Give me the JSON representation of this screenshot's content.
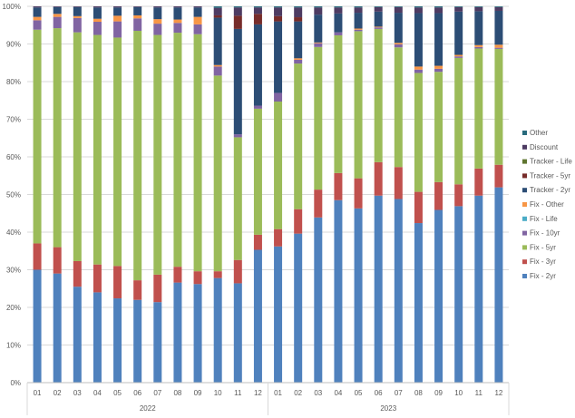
{
  "chart_data": {
    "type": "bar",
    "stacked": "percent",
    "title": "",
    "xlabel": "",
    "ylabel": "",
    "ylim": [
      0,
      100
    ],
    "y_ticks": [
      "0%",
      "10%",
      "20%",
      "30%",
      "40%",
      "50%",
      "60%",
      "70%",
      "80%",
      "90%",
      "100%"
    ],
    "grid": true,
    "legend_position": "right",
    "groups": [
      {
        "label": "2022",
        "categories": [
          "01",
          "02",
          "03",
          "04",
          "05",
          "06",
          "07",
          "08",
          "09",
          "10",
          "11",
          "12"
        ]
      },
      {
        "label": "2023",
        "categories": [
          "01",
          "02",
          "03",
          "04",
          "05",
          "06",
          "07",
          "08",
          "09",
          "10",
          "11",
          "12"
        ]
      }
    ],
    "series": [
      {
        "name": "Fix - 2yr",
        "color": "#4f81bd",
        "values": [
          30,
          29,
          25.5,
          24,
          22.4,
          22,
          21.4,
          26.6,
          26.2,
          27.8,
          26.4,
          35.3,
          36.2,
          39.6,
          43.9,
          48.5,
          46.3,
          49.7,
          48.8,
          42.4,
          45.9,
          46.9,
          49.7,
          51.9
        ]
      },
      {
        "name": "Fix - 3yr",
        "color": "#c0504d",
        "values": [
          7,
          7,
          6.8,
          7.4,
          8.6,
          5.2,
          7.3,
          4.2,
          3.4,
          1.8,
          6.2,
          4,
          4.6,
          6.5,
          7.4,
          7.2,
          8,
          8.9,
          8.5,
          8.3,
          7.4,
          5.8,
          7.2,
          6
        ]
      },
      {
        "name": "Fix - 5yr",
        "color": "#9bbb59",
        "values": [
          56.8,
          58.2,
          60.8,
          61,
          60.7,
          66.3,
          63.7,
          62.2,
          63,
          52,
          32.6,
          33.5,
          33.9,
          38.7,
          37.9,
          36.6,
          39.1,
          35.4,
          31.8,
          31.6,
          29.3,
          33.6,
          31.9,
          30.8
        ]
      },
      {
        "name": "Fix - 10yr",
        "color": "#8064a2",
        "values": [
          2.5,
          3,
          3.8,
          3.5,
          4.3,
          3.3,
          3,
          2.6,
          2.6,
          2.4,
          0.8,
          0.8,
          2.3,
          1,
          1,
          0.8,
          0.4,
          0.4,
          0.8,
          0.9,
          0.8,
          0.4,
          0.4,
          0.3
        ]
      },
      {
        "name": "Fix - Life",
        "color": "#4bacc6",
        "values": [
          0,
          0,
          0,
          0,
          0,
          0,
          0,
          0,
          0,
          0,
          0,
          0,
          0,
          0,
          0,
          0,
          0,
          0,
          0,
          0,
          0,
          0,
          0,
          0
        ]
      },
      {
        "name": "Fix - Other",
        "color": "#f79646",
        "values": [
          0.9,
          0.8,
          0.5,
          0.8,
          1.5,
          0.8,
          1.2,
          0.9,
          2,
          0.4,
          0,
          0,
          0,
          0.4,
          0.2,
          0,
          0.3,
          0.2,
          0.4,
          0.8,
          0.8,
          0.4,
          0.5,
          0.8
        ]
      },
      {
        "name": "Tracker - 2yr",
        "color": "#2c4d75",
        "values": [
          2.5,
          1.8,
          2.4,
          3,
          2.2,
          2.2,
          3.1,
          3.2,
          2.5,
          12.6,
          28,
          21.6,
          19,
          9.8,
          7.4,
          5,
          4.2,
          4,
          8,
          14.2,
          14,
          11.5,
          9,
          9
        ]
      },
      {
        "name": "Tracker - 5yr",
        "color": "#772c2a",
        "values": [
          0,
          0,
          0,
          0,
          0,
          0,
          0,
          0,
          0,
          0.6,
          3.5,
          2.8,
          1.4,
          1.1,
          0,
          0,
          0,
          0,
          0,
          0,
          0,
          0,
          0,
          0
        ]
      },
      {
        "name": "Tracker - Life",
        "color": "#5f7530",
        "values": [
          0,
          0,
          0,
          0,
          0,
          0,
          0,
          0,
          0,
          0,
          0,
          0,
          0,
          0,
          0,
          0,
          0,
          0,
          0,
          0,
          0,
          0,
          0,
          0
        ]
      },
      {
        "name": "Discount",
        "color": "#4d3b62",
        "values": [
          0.3,
          0.2,
          0.2,
          0.3,
          0.3,
          0.2,
          0.3,
          0.3,
          0.3,
          2,
          2.2,
          1.7,
          2.3,
          2.6,
          1.9,
          1.6,
          1.4,
          1.2,
          1.5,
          1.5,
          1.5,
          1.2,
          1.1,
          1
        ]
      },
      {
        "name": "Other",
        "color": "#276a7c",
        "values": [
          0,
          0,
          0,
          0,
          0,
          0,
          0,
          0,
          0,
          0.4,
          0.3,
          0.3,
          0.3,
          0.3,
          0.3,
          0.3,
          0.3,
          0.2,
          0.2,
          0.3,
          0.3,
          0.2,
          0.2,
          0.2
        ]
      }
    ]
  }
}
